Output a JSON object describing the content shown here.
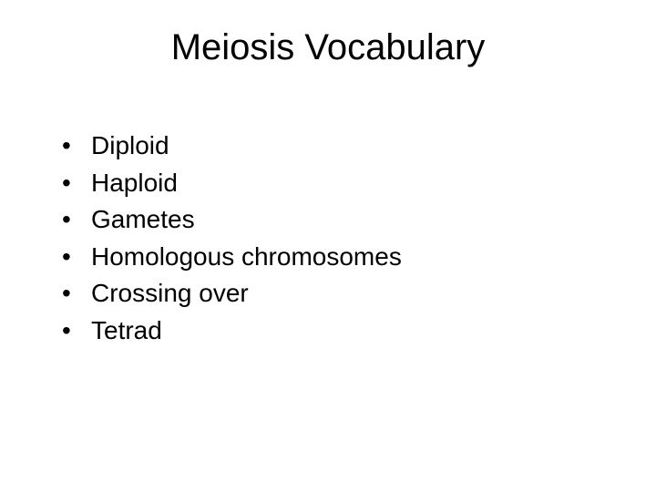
{
  "slide": {
    "title": "Meiosis Vocabulary",
    "title_fontsize": 40,
    "body_fontsize": 28,
    "background_color": "#ffffff",
    "text_color": "#000000",
    "bullet_glyph": "•",
    "bullets": [
      {
        "text": "Diploid"
      },
      {
        "text": "Haploid"
      },
      {
        "text": "Gametes"
      },
      {
        "text": "Homologous chromosomes"
      },
      {
        "text": "Crossing over"
      },
      {
        "text": "Tetrad"
      }
    ]
  }
}
